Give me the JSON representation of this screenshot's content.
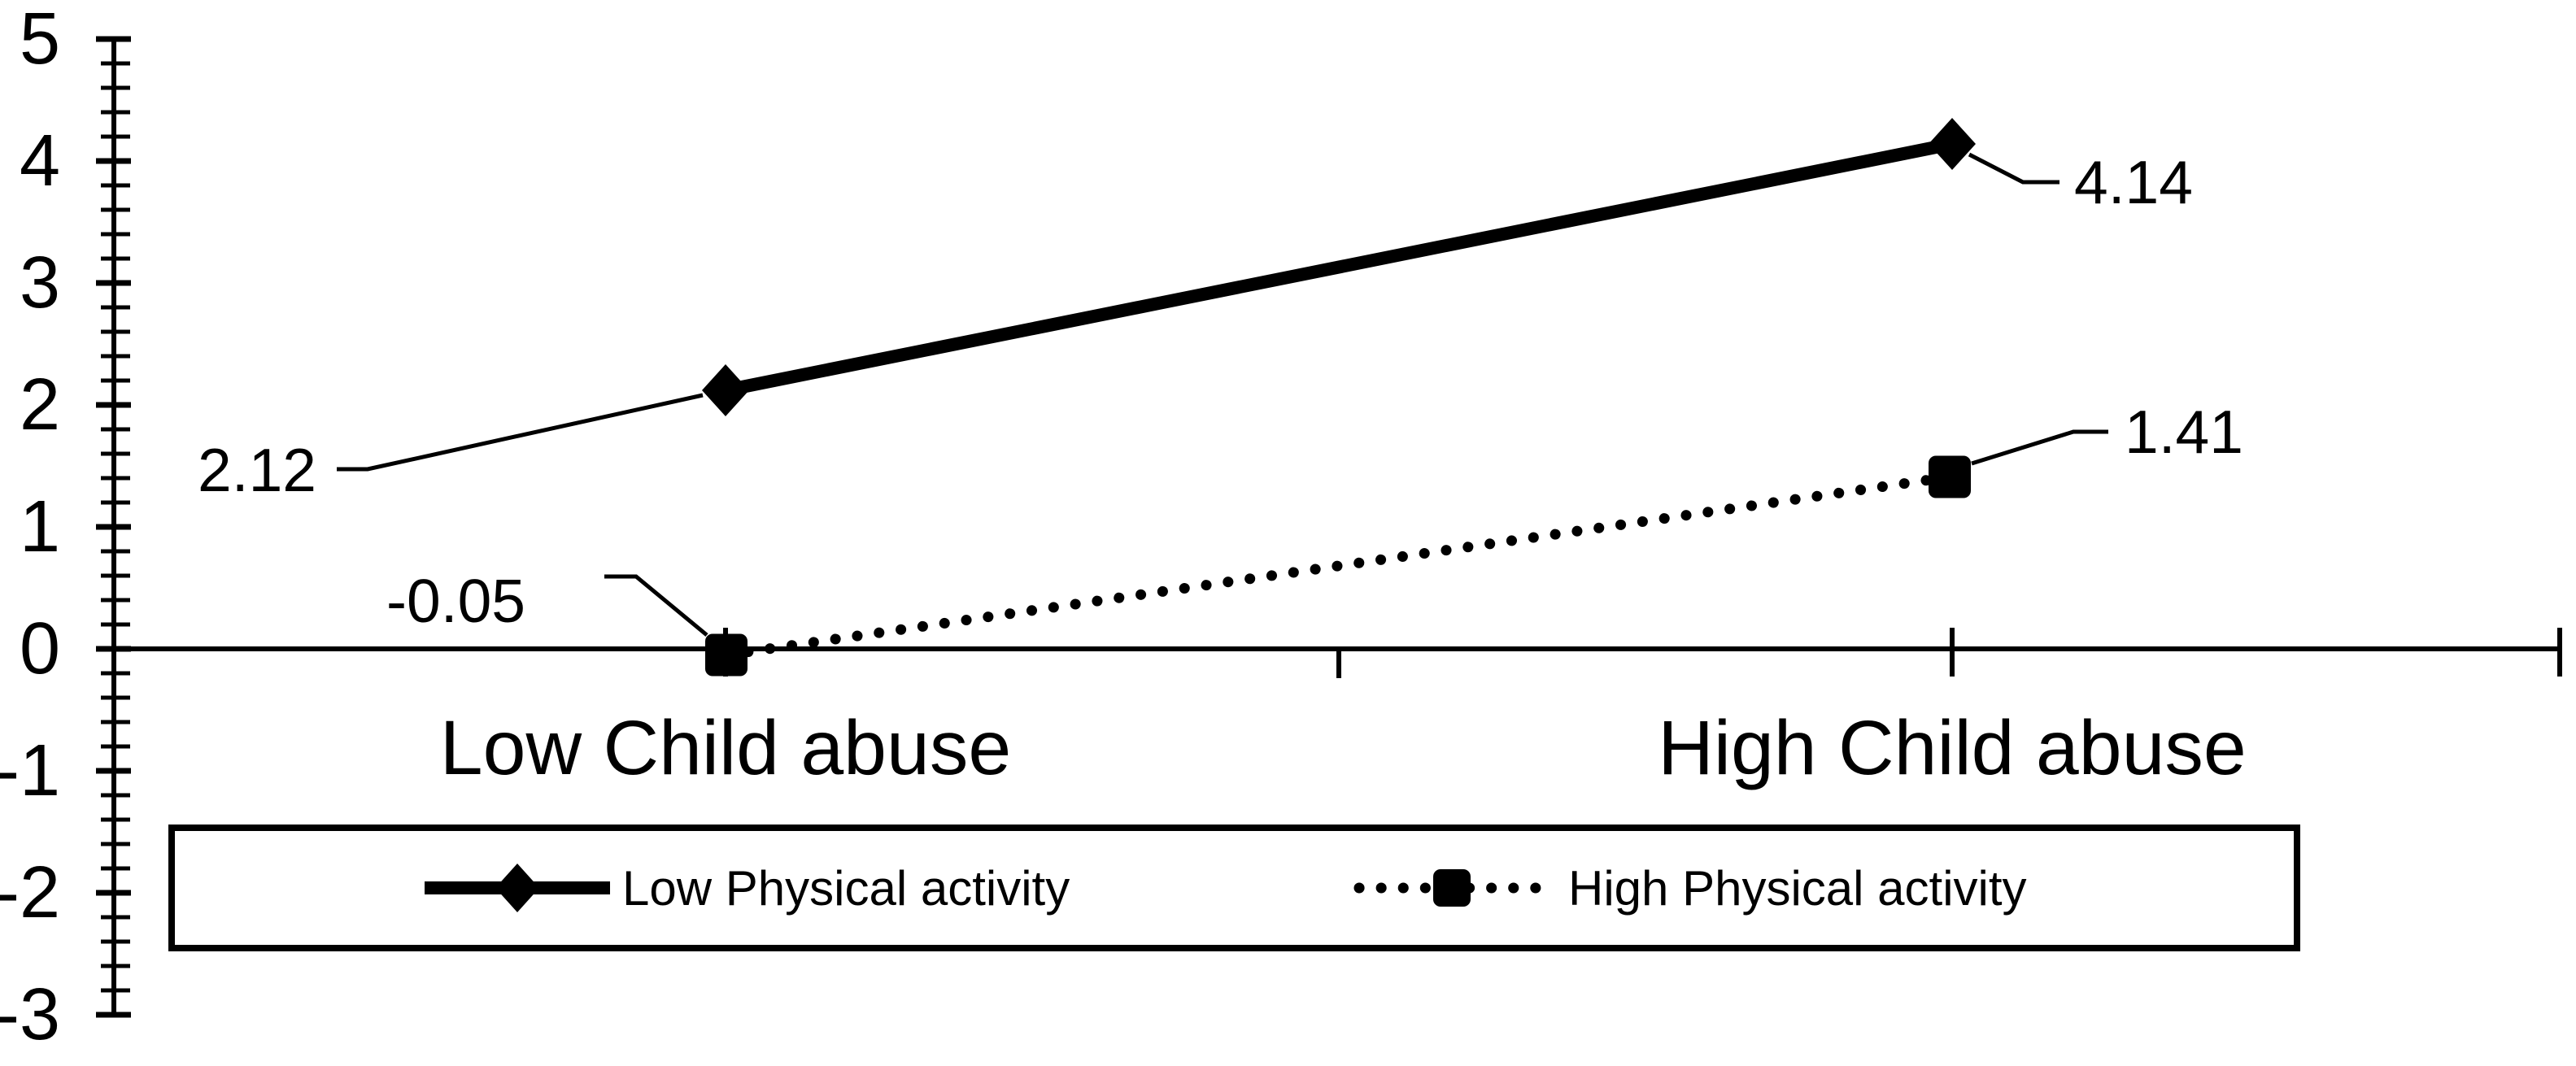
{
  "chart_data": {
    "type": "line",
    "title": "",
    "categories": [
      "Low Child abuse",
      "High Child abuse"
    ],
    "series": [
      {
        "name": "Low Physical activity",
        "values": [
          2.12,
          4.14
        ],
        "labels": [
          "2.12",
          "4.14"
        ],
        "line_style": "solid",
        "marker": "diamond"
      },
      {
        "name": "High Physical activity",
        "values": [
          -0.05,
          1.41
        ],
        "labels": [
          "-0.05",
          "1.41"
        ],
        "line_style": "dotted",
        "marker": "square"
      }
    ],
    "y_axis": {
      "min": -3,
      "max": 5,
      "major_step": 1,
      "minor_step": 0.2,
      "tick_labels": [
        "5",
        "4",
        "3",
        "2",
        "1",
        "0",
        "-1",
        "-2",
        "-3"
      ]
    },
    "x_axis": {
      "position_value": 0,
      "tick_labels": [
        "Low Child abuse",
        "High Child abuse"
      ]
    },
    "legend": {
      "position": "bottom",
      "border": true,
      "entries": [
        "Low Physical activity",
        "High Physical activity"
      ]
    },
    "grid": false,
    "colors": {
      "foreground": "#000000",
      "background": "#ffffff"
    }
  }
}
